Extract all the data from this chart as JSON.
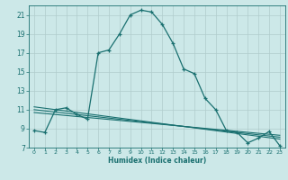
{
  "xlabel": "Humidex (Indice chaleur)",
  "background_color": "#cce8e8",
  "line_color": "#1a7070",
  "grid_color": "#b0cccc",
  "xlim": [
    -0.5,
    23.5
  ],
  "ylim": [
    7,
    22
  ],
  "xticks": [
    0,
    1,
    2,
    3,
    4,
    5,
    6,
    7,
    8,
    9,
    10,
    11,
    12,
    13,
    14,
    15,
    16,
    17,
    18,
    19,
    20,
    21,
    22,
    23
  ],
  "yticks": [
    7,
    9,
    11,
    13,
    15,
    17,
    19,
    21
  ],
  "main_x": [
    0,
    1,
    2,
    3,
    4,
    5,
    6,
    7,
    8,
    9,
    10,
    11,
    12,
    13,
    14,
    15,
    16,
    17,
    18,
    19,
    20,
    21,
    22,
    23
  ],
  "main_y": [
    8.8,
    8.6,
    11.0,
    11.2,
    10.5,
    10.0,
    17.0,
    17.3,
    19.0,
    21.0,
    21.5,
    21.3,
    20.0,
    18.0,
    15.3,
    14.8,
    12.2,
    11.0,
    8.8,
    8.6,
    7.5,
    8.0,
    8.7,
    7.2
  ],
  "reg_lines": [
    {
      "x": [
        0,
        23
      ],
      "y": [
        11.3,
        7.9
      ]
    },
    {
      "x": [
        0,
        23
      ],
      "y": [
        11.0,
        8.1
      ]
    },
    {
      "x": [
        0,
        23
      ],
      "y": [
        10.7,
        8.3
      ]
    }
  ]
}
